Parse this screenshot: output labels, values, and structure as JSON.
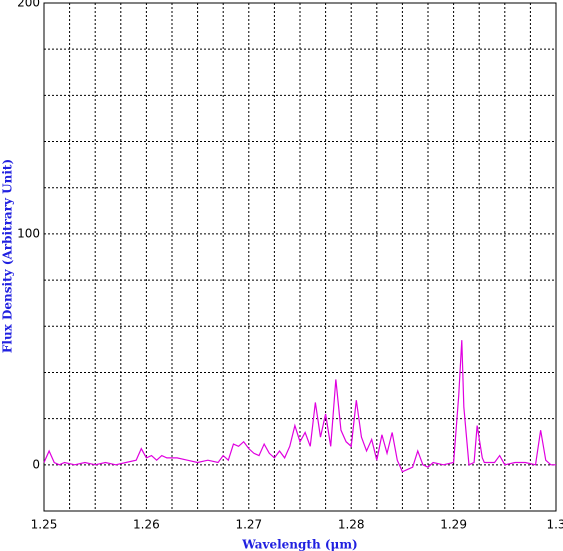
{
  "chart_data": {
    "type": "line",
    "xlabel": "Wavelength (μm)",
    "ylabel": "Flux Density (Arbitrary Unit)",
    "xlim": [
      1.25,
      1.3
    ],
    "xticks": [
      1.25,
      1.26,
      1.27,
      1.28,
      1.29,
      1.3
    ],
    "xminor": [
      1.2525,
      1.255,
      1.2575,
      1.2625,
      1.265,
      1.2675,
      1.2725,
      1.275,
      1.2775,
      1.2825,
      1.285,
      1.2875,
      1.2925,
      1.295,
      1.2975
    ],
    "ylim": [
      -20,
      200
    ],
    "yticks": [
      0,
      100,
      200
    ],
    "yminor": [
      20,
      40,
      60,
      80,
      120,
      140,
      160,
      180
    ],
    "grid": true,
    "series": [
      {
        "color": "#e000e0",
        "x": [
          1.25,
          1.2505,
          1.251,
          1.2515,
          1.252,
          1.253,
          1.254,
          1.255,
          1.256,
          1.257,
          1.258,
          1.259,
          1.2595,
          1.26,
          1.2605,
          1.261,
          1.2615,
          1.262,
          1.263,
          1.264,
          1.265,
          1.266,
          1.267,
          1.2675,
          1.268,
          1.2685,
          1.269,
          1.2695,
          1.27,
          1.2705,
          1.271,
          1.2715,
          1.272,
          1.2725,
          1.273,
          1.2735,
          1.274,
          1.2745,
          1.275,
          1.2755,
          1.276,
          1.2765,
          1.277,
          1.2775,
          1.278,
          1.2785,
          1.279,
          1.2795,
          1.28,
          1.2805,
          1.281,
          1.2815,
          1.282,
          1.2825,
          1.283,
          1.2835,
          1.284,
          1.2845,
          1.285,
          1.2855,
          1.286,
          1.2865,
          1.287,
          1.2875,
          1.288,
          1.289,
          1.29,
          1.2905,
          1.2908,
          1.291,
          1.2915,
          1.292,
          1.2923,
          1.2928,
          1.293,
          1.294,
          1.2945,
          1.295,
          1.296,
          1.297,
          1.298,
          1.2985,
          1.299,
          1.2995,
          1.3
        ],
        "values": [
          1,
          6,
          1,
          0,
          1,
          0,
          1,
          0,
          1,
          0,
          1,
          2,
          7,
          3,
          4,
          2,
          4,
          3,
          3,
          2,
          1,
          2,
          1,
          4,
          2,
          9,
          8,
          10,
          7,
          5,
          4,
          9,
          5,
          3,
          6,
          3,
          8,
          17,
          10,
          14,
          8,
          27,
          12,
          22,
          8,
          37,
          15,
          10,
          8,
          28,
          12,
          6,
          11,
          2,
          13,
          5,
          14,
          2,
          -3,
          -2,
          -1,
          6,
          0,
          -1,
          1,
          0,
          1,
          30,
          54,
          25,
          0,
          1,
          17,
          3,
          1,
          1,
          4,
          0,
          1,
          1,
          0,
          15,
          2,
          0,
          0
        ]
      }
    ]
  }
}
